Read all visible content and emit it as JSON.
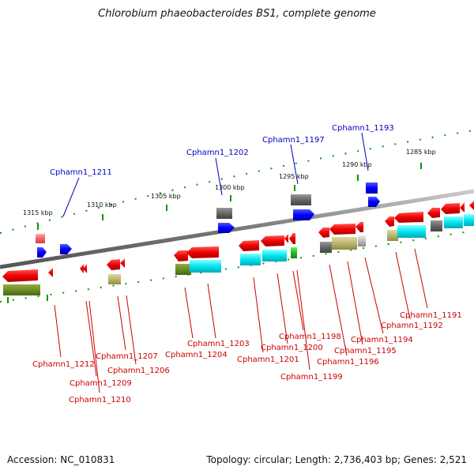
{
  "title": "Chlorobium phaeobacteroides BS1, complete genome",
  "footer": {
    "accession": "Accession: NC_010831",
    "topology": "Topology: circular; Length: 2,736,403 bp; Genes: 2,521"
  },
  "scale_ticks": [
    "1315 kbp",
    "1310 kbp",
    "1305 kbp",
    "1300 kbp",
    "1295 kbp",
    "1290 kbp",
    "1285 kbp"
  ],
  "gene_labels_top": [
    "Cphamn1_1211",
    "Cphamn1_1202",
    "Cphamn1_1197",
    "Cphamn1_1193"
  ],
  "gene_labels_bottom": [
    "Cphamn1_1212",
    "Cphamn1_1209",
    "Cphamn1_1210",
    "Cphamn1_1207",
    "Cphamn1_1206",
    "Cphamn1_1203",
    "Cphamn1_1204",
    "Cphamn1_1201",
    "Cphamn1_1200",
    "Cphamn1_1198",
    "Cphamn1_1199",
    "Cphamn1_1196",
    "Cphamn1_1195",
    "Cphamn1_1194",
    "Cphamn1_1192",
    "Cphamn1_1191"
  ],
  "colors": {
    "forward_gene": "#0000ff",
    "reverse_gene": "#ee0000",
    "label_top": "#0000bb",
    "label_bottom": "#cc0000",
    "backbone": "#888888",
    "tick": "#009900"
  }
}
